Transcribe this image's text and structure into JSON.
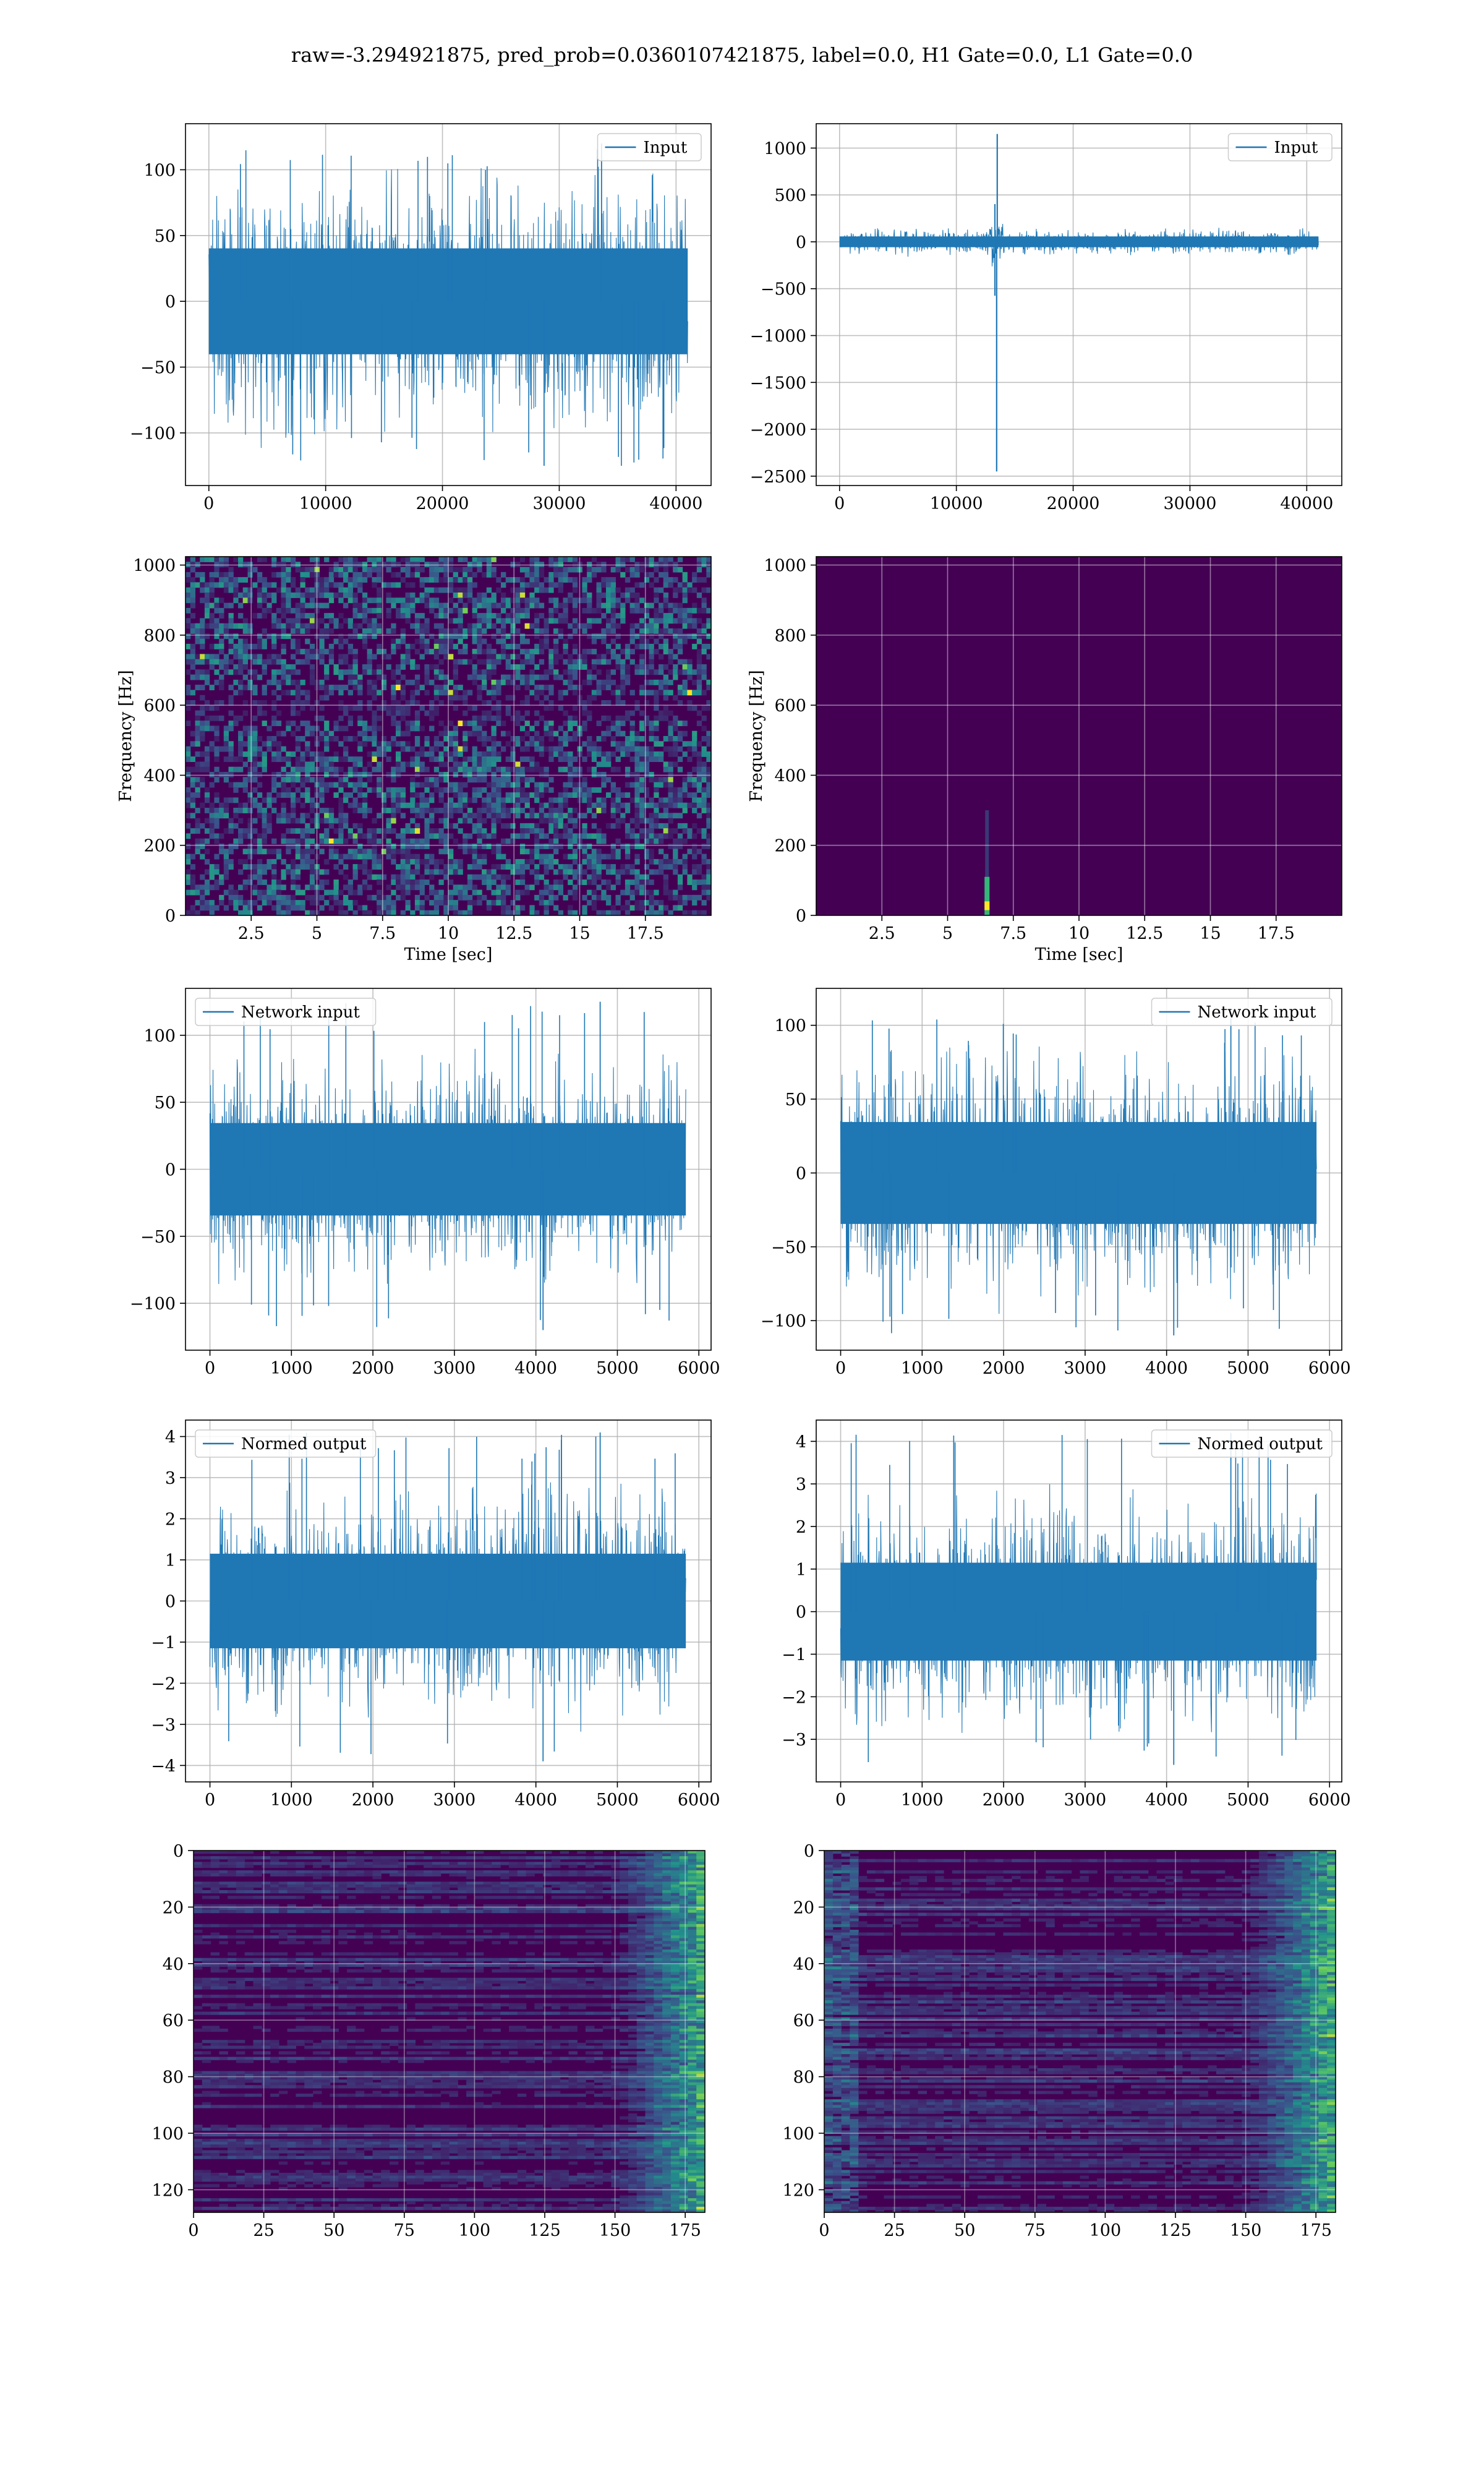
{
  "figure": {
    "title": "raw=-3.294921875, pred_prob=0.0360107421875, label=0.0, H1 Gate=0.0, L1 Gate=0.0",
    "colors": {
      "line": "#1f77b4",
      "grid": "#b0b0b0",
      "viridis_dark": "#440154",
      "viridis_mid": "#31688e",
      "viridis_teal": "#35b779",
      "viridis_yellow": "#fde725"
    }
  },
  "chart_data": [
    {
      "id": "p1",
      "type": "line",
      "legend": "Input",
      "legend_loc": "upper right",
      "xlim": [
        -2000,
        43000
      ],
      "ylim": [
        -140,
        135
      ],
      "xticks": [
        0,
        10000,
        20000,
        30000,
        40000
      ],
      "yticks": [
        -100,
        -50,
        0,
        50,
        100
      ],
      "x_range": [
        0,
        41000
      ],
      "band_amplitude": 35,
      "spike_max": 120,
      "spike_min": -125,
      "grid": true
    },
    {
      "id": "p2",
      "type": "line",
      "legend": "Input",
      "legend_loc": "upper right",
      "xlim": [
        -2000,
        43000
      ],
      "ylim": [
        -2600,
        1260
      ],
      "xticks": [
        0,
        10000,
        20000,
        30000,
        40000
      ],
      "yticks": [
        -2500,
        -2000,
        -1500,
        -1000,
        -500,
        0,
        500,
        1000
      ],
      "x_range": [
        0,
        41000
      ],
      "band_amplitude": 50,
      "glitch_x": 13500,
      "glitch_max": 1150,
      "glitch_min": -2450,
      "grid": true
    },
    {
      "id": "p3",
      "type": "heatmap",
      "colormap": "viridis",
      "ylabel": "Frequency [Hz]",
      "xlabel": "Time [sec]",
      "xlim": [
        0,
        20
      ],
      "ylim": [
        0,
        1024
      ],
      "xticks": [
        2.5,
        5.0,
        7.5,
        10.0,
        12.5,
        15.0,
        17.5
      ],
      "yticks": [
        0,
        200,
        400,
        600,
        800,
        1000
      ],
      "grid": true
    },
    {
      "id": "p4",
      "type": "heatmap",
      "colormap": "viridis",
      "ylabel": "Frequency [Hz]",
      "xlabel": "Time [sec]",
      "xlim": [
        0,
        20
      ],
      "ylim": [
        0,
        1024
      ],
      "xticks": [
        2.5,
        5.0,
        7.5,
        10.0,
        12.5,
        15.0,
        17.5
      ],
      "yticks": [
        0,
        200,
        400,
        600,
        800,
        1000
      ],
      "glitch_time": 6.5,
      "glitch_freq_top": 300,
      "grid": true
    },
    {
      "id": "p5",
      "type": "line",
      "legend": "Network input",
      "legend_loc": "upper left",
      "xlim": [
        -300,
        6150
      ],
      "ylim": [
        -135,
        135
      ],
      "xticks": [
        0,
        1000,
        2000,
        3000,
        4000,
        5000,
        6000
      ],
      "yticks": [
        -100,
        -50,
        0,
        50,
        100
      ],
      "x_range": [
        0,
        5840
      ],
      "band_amplitude": 30,
      "spike_max": 125,
      "spike_min": -120,
      "grid": true
    },
    {
      "id": "p6",
      "type": "line",
      "legend": "Network input",
      "legend_loc": "upper right",
      "xlim": [
        -300,
        6150
      ],
      "ylim": [
        -120,
        125
      ],
      "xticks": [
        0,
        1000,
        2000,
        3000,
        4000,
        5000,
        6000
      ],
      "yticks": [
        -100,
        -50,
        0,
        50,
        100
      ],
      "x_range": [
        0,
        5840
      ],
      "band_amplitude": 30,
      "spike_max": 105,
      "spike_min": -110,
      "grid": true
    },
    {
      "id": "p7",
      "type": "line",
      "legend": "Normed output",
      "legend_loc": "upper left",
      "xlim": [
        -300,
        6150
      ],
      "ylim": [
        -4.4,
        4.4
      ],
      "xticks": [
        0,
        1000,
        2000,
        3000,
        4000,
        5000,
        6000
      ],
      "yticks": [
        -4,
        -3,
        -2,
        -1,
        0,
        1,
        2,
        3,
        4
      ],
      "x_range": [
        0,
        5840
      ],
      "band_amplitude": 1.0,
      "spike_max": 4.1,
      "spike_min": -3.9,
      "grid": true
    },
    {
      "id": "p8",
      "type": "line",
      "legend": "Normed output",
      "legend_loc": "upper right",
      "xlim": [
        -300,
        6150
      ],
      "ylim": [
        -4.0,
        4.5
      ],
      "xticks": [
        0,
        1000,
        2000,
        3000,
        4000,
        5000,
        6000
      ],
      "yticks": [
        -3,
        -2,
        -1,
        0,
        1,
        2,
        3,
        4
      ],
      "x_range": [
        0,
        5840
      ],
      "band_amplitude": 1.0,
      "spike_max": 4.2,
      "spike_min": -3.6,
      "grid": true
    },
    {
      "id": "p9",
      "type": "heatmap",
      "colormap": "viridis",
      "xlim": [
        0,
        182
      ],
      "ylim": [
        128,
        0
      ],
      "xticks": [
        0,
        25,
        50,
        75,
        100,
        125,
        150,
        175
      ],
      "yticks": [
        0,
        20,
        40,
        60,
        80,
        100,
        120
      ],
      "grid": true
    },
    {
      "id": "p10",
      "type": "heatmap",
      "colormap": "viridis",
      "xlim": [
        0,
        182
      ],
      "ylim": [
        128,
        0
      ],
      "xticks": [
        0,
        25,
        50,
        75,
        100,
        125,
        150,
        175
      ],
      "yticks": [
        0,
        20,
        40,
        60,
        80,
        100,
        120
      ],
      "grid": true
    }
  ]
}
